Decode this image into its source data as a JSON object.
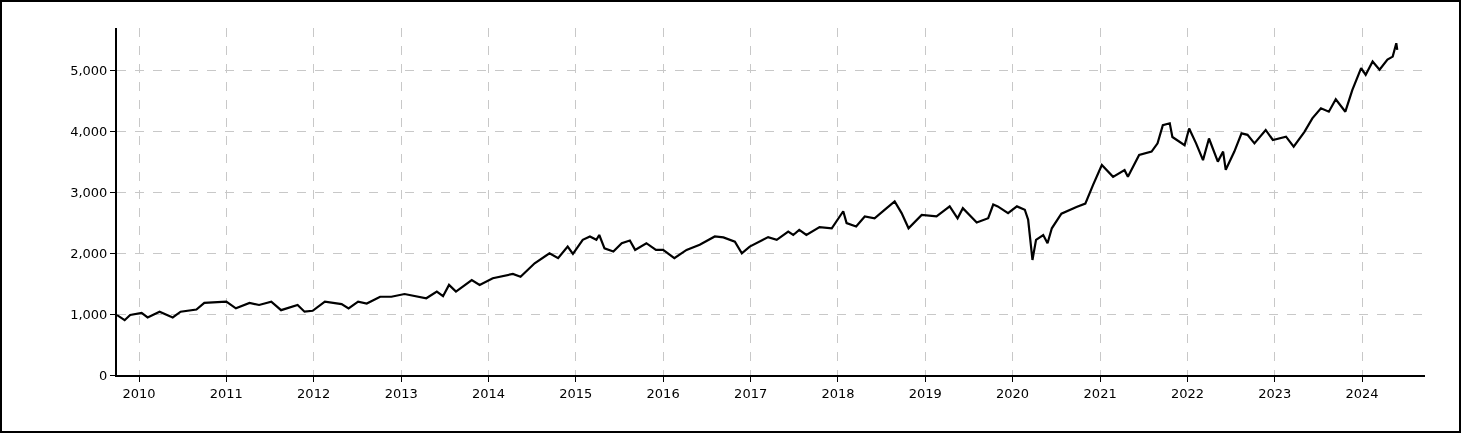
{
  "chart_data": {
    "type": "line",
    "color": "#000000",
    "grid": true,
    "line_style": "solid",
    "x": [
      "2009-10-01",
      "2009-11-02",
      "2009-11-25",
      "2010-01-12",
      "2010-02-06",
      "2010-03-28",
      "2010-05-22",
      "2010-06-24",
      "2010-08-29",
      "2010-10-01",
      "2011-01-01",
      "2011-02-10",
      "2011-04-08",
      "2011-05-18",
      "2011-07-08",
      "2011-08-18",
      "2011-10-26",
      "2011-11-24",
      "2011-12-28",
      "2012-02-17",
      "2012-04-27",
      "2012-05-26",
      "2012-07-05",
      "2012-08-10",
      "2012-10-05",
      "2012-11-21",
      "2013-01-15",
      "2013-04-16",
      "2013-05-30",
      "2013-06-25",
      "2013-07-20",
      "2013-08-18",
      "2013-10-23",
      "2013-11-25",
      "2014-01-19",
      "2014-04-13",
      "2014-05-15",
      "2014-07-13",
      "2014-09-13",
      "2014-10-19",
      "2014-11-28",
      "2014-12-20",
      "2015-01-30",
      "2015-03-01",
      "2015-03-28",
      "2015-04-09",
      "2015-05-01",
      "2015-06-07",
      "2015-07-12",
      "2015-08-15",
      "2015-09-06",
      "2015-10-23",
      "2015-12-02",
      "2016-01-01",
      "2016-02-17",
      "2016-04-08",
      "2016-06-02",
      "2016-08-04",
      "2016-09-09",
      "2016-10-27",
      "2016-11-25",
      "2016-12-28",
      "2017-03-15",
      "2017-04-20",
      "2017-06-07",
      "2017-06-28",
      "2017-07-23",
      "2017-08-22",
      "2017-10-16",
      "2017-12-06",
      "2018-01-23",
      "2018-02-06",
      "2018-03-18",
      "2018-04-23",
      "2018-06-03",
      "2018-07-16",
      "2018-08-26",
      "2018-09-24",
      "2018-10-23",
      "2018-12-17",
      "2019-02-17",
      "2019-04-13",
      "2019-05-16",
      "2019-06-07",
      "2019-08-04",
      "2019-09-21",
      "2019-10-12",
      "2019-10-31",
      "2019-12-13",
      "2020-01-19",
      "2020-02-21",
      "2020-03-06",
      "2020-03-24",
      "2020-04-08",
      "2020-05-08",
      "2020-05-26",
      "2020-06-13",
      "2020-07-23",
      "2020-09-24",
      "2020-10-31",
      "2020-12-02",
      "2021-01-08",
      "2021-02-24",
      "2021-04-13",
      "2021-04-27",
      "2021-06-13",
      "2021-08-04",
      "2021-08-29",
      "2021-09-20",
      "2021-10-19",
      "2021-10-30",
      "2021-12-20",
      "2022-01-08",
      "2022-02-06",
      "2022-03-07",
      "2022-04-01",
      "2022-05-08",
      "2022-05-30",
      "2022-06-10",
      "2022-07-16",
      "2022-08-15",
      "2022-09-09",
      "2022-10-08",
      "2022-11-24",
      "2022-12-24",
      "2023-02-17",
      "2023-03-21",
      "2023-05-05",
      "2023-06-07",
      "2023-07-13",
      "2023-08-15",
      "2023-09-13",
      "2023-10-23",
      "2023-11-21",
      "2023-12-28",
      "2024-01-16",
      "2024-02-14",
      "2024-03-14",
      "2024-04-16",
      "2024-05-08",
      "2024-05-23",
      "2024-05-27"
    ],
    "values": [
      985,
      900,
      985,
      1020,
      945,
      1040,
      945,
      1040,
      1075,
      1185,
      1205,
      1095,
      1185,
      1150,
      1205,
      1065,
      1150,
      1040,
      1055,
      1205,
      1165,
      1095,
      1205,
      1175,
      1285,
      1285,
      1330,
      1260,
      1370,
      1295,
      1480,
      1370,
      1560,
      1480,
      1590,
      1660,
      1615,
      1835,
      2000,
      1920,
      2110,
      1990,
      2220,
      2275,
      2220,
      2300,
      2080,
      2030,
      2165,
      2210,
      2055,
      2165,
      2055,
      2055,
      1920,
      2055,
      2140,
      2275,
      2260,
      2190,
      2000,
      2110,
      2265,
      2220,
      2355,
      2300,
      2385,
      2300,
      2430,
      2410,
      2690,
      2495,
      2440,
      2605,
      2575,
      2715,
      2850,
      2660,
      2410,
      2630,
      2605,
      2770,
      2575,
      2740,
      2505,
      2575,
      2800,
      2770,
      2660,
      2770,
      2715,
      2550,
      1890,
      2220,
      2300,
      2165,
      2410,
      2650,
      2760,
      2815,
      3120,
      3450,
      3255,
      3365,
      3255,
      3615,
      3670,
      3805,
      4105,
      4135,
      3910,
      3775,
      4050,
      3805,
      3530,
      3885,
      3505,
      3670,
      3370,
      3670,
      3970,
      3945,
      3805,
      4025,
      3860,
      3915,
      3750,
      3995,
      4215,
      4380,
      4325,
      4530,
      4325,
      4680,
      5040,
      4930,
      5150,
      5015,
      5180,
      5230,
      5450,
      5340
    ],
    "xlim": [
      "2009-10-01",
      "2024-09-20"
    ],
    "xticks": [
      {
        "value": "2010-01-01",
        "label": "2010"
      },
      {
        "value": "2011-01-01",
        "label": "2011"
      },
      {
        "value": "2012-01-01",
        "label": "2012"
      },
      {
        "value": "2013-01-01",
        "label": "2013"
      },
      {
        "value": "2014-01-01",
        "label": "2014"
      },
      {
        "value": "2015-01-01",
        "label": "2015"
      },
      {
        "value": "2016-01-01",
        "label": "2016"
      },
      {
        "value": "2017-01-01",
        "label": "2017"
      },
      {
        "value": "2018-01-01",
        "label": "2018"
      },
      {
        "value": "2019-01-01",
        "label": "2019"
      },
      {
        "value": "2020-01-01",
        "label": "2020"
      },
      {
        "value": "2021-01-01",
        "label": "2021"
      },
      {
        "value": "2022-01-01",
        "label": "2022"
      },
      {
        "value": "2023-01-01",
        "label": "2023"
      },
      {
        "value": "2024-01-01",
        "label": "2024"
      }
    ],
    "ylim": [
      0,
      5700
    ],
    "yticks": [
      0,
      {
        "value": 1000,
        "label": "1,000"
      },
      {
        "value": 2000,
        "label": "2,000"
      },
      {
        "value": 3000,
        "label": "3,000"
      },
      {
        "value": 4000,
        "label": "4,000"
      },
      {
        "value": 5000,
        "label": "5,000"
      }
    ]
  }
}
